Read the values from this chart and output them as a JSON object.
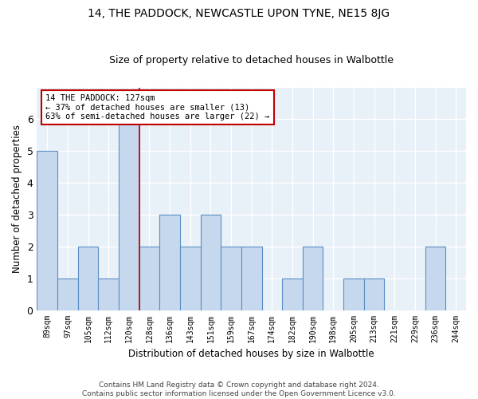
{
  "title": "14, THE PADDOCK, NEWCASTLE UPON TYNE, NE15 8JG",
  "subtitle": "Size of property relative to detached houses in Walbottle",
  "xlabel": "Distribution of detached houses by size in Walbottle",
  "ylabel": "Number of detached properties",
  "categories": [
    "89sqm",
    "97sqm",
    "105sqm",
    "112sqm",
    "120sqm",
    "128sqm",
    "136sqm",
    "143sqm",
    "151sqm",
    "159sqm",
    "167sqm",
    "174sqm",
    "182sqm",
    "190sqm",
    "198sqm",
    "205sqm",
    "213sqm",
    "221sqm",
    "229sqm",
    "236sqm",
    "244sqm"
  ],
  "values": [
    5,
    1,
    2,
    1,
    6,
    2,
    3,
    2,
    3,
    2,
    2,
    0,
    1,
    2,
    0,
    1,
    1,
    0,
    0,
    2,
    0
  ],
  "bar_color": "#c5d8ed",
  "bar_edge_color": "#5b8ec4",
  "highlight_line_index": 4.5,
  "highlight_line_color": "#c00000",
  "annotation_text": "14 THE PADDOCK: 127sqm\n← 37% of detached houses are smaller (13)\n63% of semi-detached houses are larger (22) →",
  "annotation_box_color": "#ffffff",
  "annotation_box_edge_color": "#c00000",
  "ylim": [
    0,
    7
  ],
  "yticks": [
    0,
    1,
    2,
    3,
    4,
    5,
    6
  ],
  "background_color": "#e8f0f8",
  "grid_color": "#ffffff",
  "footer_text": "Contains HM Land Registry data © Crown copyright and database right 2024.\nContains public sector information licensed under the Open Government Licence v3.0.",
  "title_fontsize": 10,
  "subtitle_fontsize": 9,
  "xlabel_fontsize": 8.5,
  "ylabel_fontsize": 8.5,
  "annotation_fontsize": 7.5,
  "footer_fontsize": 6.5,
  "tick_fontsize": 7
}
